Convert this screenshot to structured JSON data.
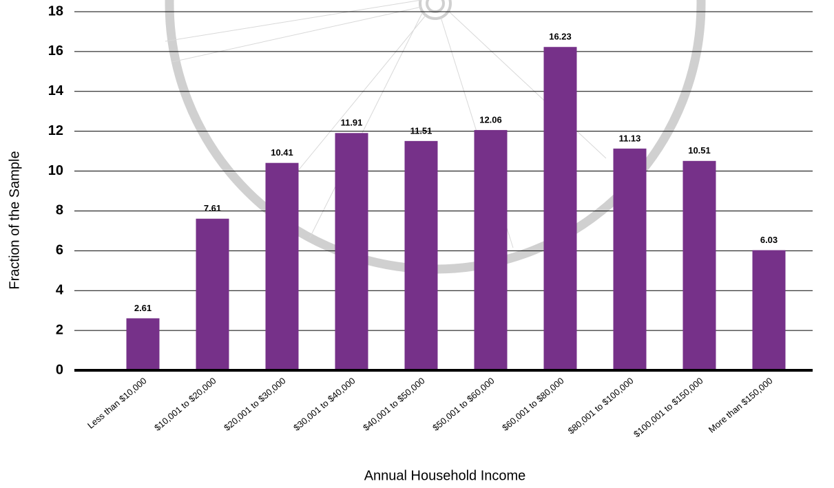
{
  "chart_data": {
    "type": "bar",
    "x_label": "Annual Household Income",
    "y_label": "Fraction of the Sample",
    "categories": [
      "Less than $10,000",
      "$10,001 to $20,000",
      "$20,001 to $30,000",
      "$30,001 to $40,000",
      "$40,001 to $50,000",
      "$50,001 to $60,000",
      "$60,001 to $80,000",
      "$80,001 to $100,000",
      "$100,001 to $150,000",
      "More than $150,000"
    ],
    "values": [
      2.61,
      7.61,
      10.41,
      11.91,
      11.51,
      12.06,
      16.23,
      11.13,
      10.51,
      6.03
    ],
    "color": "#763189",
    "ylim": [
      0,
      18
    ],
    "yticks": [
      0,
      2,
      4,
      6,
      8,
      10,
      12,
      14,
      16,
      18
    ],
    "grid": true
  }
}
